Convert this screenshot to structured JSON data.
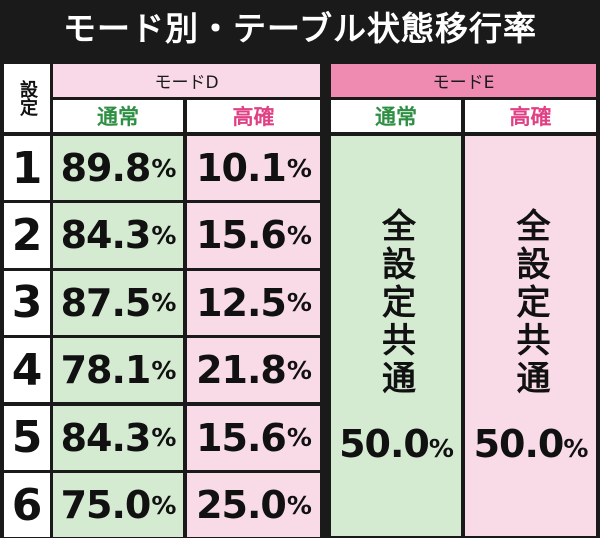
{
  "title": "モード別・テーブル状態移行率",
  "header": {
    "setting_label": "設定",
    "mode_d": "モードD",
    "mode_e": "モードE",
    "normal": "通常",
    "high": "高確"
  },
  "rows": [
    {
      "setting": "1",
      "d_normal": "89.8",
      "d_high": "10.1"
    },
    {
      "setting": "2",
      "d_normal": "84.3",
      "d_high": "15.6"
    },
    {
      "setting": "3",
      "d_normal": "87.5",
      "d_high": "12.5"
    },
    {
      "setting": "4",
      "d_normal": "78.1",
      "d_high": "21.8"
    },
    {
      "setting": "5",
      "d_normal": "84.3",
      "d_high": "15.6"
    },
    {
      "setting": "6",
      "d_normal": "75.0",
      "d_high": "25.0"
    }
  ],
  "mode_e": {
    "normal_note": "全設定共通",
    "normal_value": "50.0",
    "high_note": "全設定共通",
    "high_value": "50.0"
  },
  "percent_sign": "%",
  "colors": {
    "normal_bg": "#d4ebd2",
    "high_bg": "#f9dbe8",
    "normal_text": "#2e8f44",
    "high_text": "#e04184",
    "mode_e_header": "#ef8ab1"
  }
}
